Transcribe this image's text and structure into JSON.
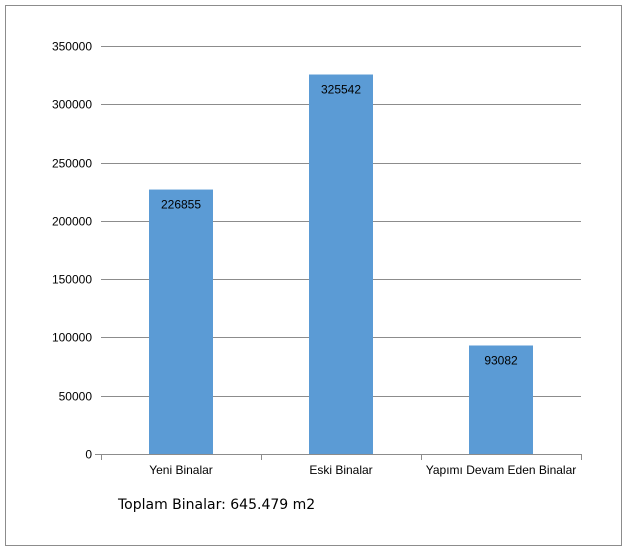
{
  "chart_data": {
    "type": "bar",
    "categories": [
      "Yeni Binalar",
      "Eski Binalar",
      "Yapımı Devam Eden Binalar"
    ],
    "values": [
      226855,
      325542,
      93082
    ],
    "data_labels": [
      "226855",
      "325542",
      "93082"
    ],
    "title": "",
    "xlabel": "",
    "ylabel": "",
    "ylim": [
      0,
      350000
    ],
    "yticks": [
      0,
      50000,
      100000,
      150000,
      200000,
      250000,
      300000,
      350000
    ],
    "ytick_labels": [
      "0",
      "50000",
      "100000",
      "150000",
      "200000",
      "250000",
      "300000",
      "350000"
    ],
    "grid": true,
    "legend": "none",
    "bar_color": "#5b9bd5"
  },
  "footnote": "Toplam Binalar: 645.479 m2"
}
